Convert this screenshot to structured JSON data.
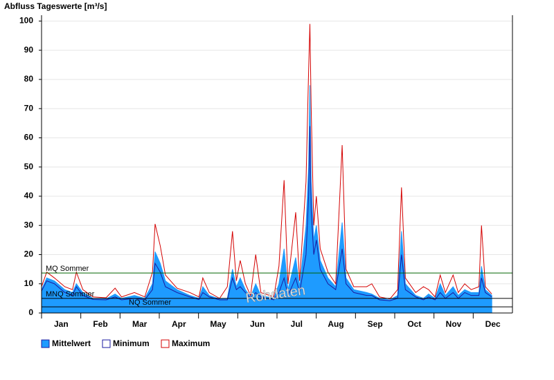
{
  "chart_data": {
    "type": "area-lines",
    "title": "Abfluss Tageswerte [m³/s]",
    "watermark": "Rohdaten",
    "categories": [
      "Jan",
      "Feb",
      "Mar",
      "Apr",
      "May",
      "Jun",
      "Jul",
      "Aug",
      "Sep",
      "Oct",
      "Nov",
      "Dec"
    ],
    "xlim": [
      0,
      365
    ],
    "ylim": [
      0,
      102
    ],
    "yticks": [
      0,
      10,
      20,
      30,
      40,
      50,
      60,
      70,
      80,
      90,
      100
    ],
    "grid": true,
    "x": [
      0,
      4,
      10,
      18,
      24,
      27,
      32,
      40,
      50,
      57,
      62,
      72,
      80,
      86,
      88,
      92,
      96,
      105,
      115,
      122,
      125,
      130,
      138,
      144,
      148,
      151,
      154,
      158,
      162,
      166,
      170,
      180,
      184,
      188,
      191,
      197,
      200,
      205,
      207,
      208,
      209,
      211,
      213,
      216,
      222,
      228,
      233,
      236,
      242,
      252,
      256,
      262,
      270,
      276,
      279,
      282,
      290,
      296,
      300,
      305,
      309,
      313,
      319,
      323,
      328,
      333,
      339,
      341,
      344,
      349
    ],
    "series": [
      {
        "name": "Mittelwert",
        "color": "#1e9bff",
        "values": [
          8,
          12,
          11,
          8,
          7,
          10,
          7,
          5,
          4.8,
          6.5,
          5,
          6,
          5,
          10,
          21,
          17,
          11,
          8,
          6,
          5,
          9,
          6,
          4.8,
          5,
          15,
          9,
          12,
          8,
          5.5,
          10,
          6,
          5,
          10,
          22,
          8,
          19,
          9,
          30,
          50,
          78,
          45,
          25,
          30,
          18,
          12,
          9,
          31,
          12,
          8,
          7,
          6.5,
          5,
          4.5,
          6,
          28,
          10,
          6,
          5,
          6.5,
          5,
          10,
          6,
          9,
          6,
          8,
          7,
          7,
          16,
          8,
          6
        ]
      },
      {
        "name": "Minimum",
        "color": "#1a1aa0",
        "values": [
          7.5,
          11,
          10,
          7,
          6,
          9,
          6,
          4.6,
          4.5,
          5.5,
          4.5,
          5,
          4.5,
          8,
          17,
          14,
          9,
          7,
          5.5,
          4.6,
          7,
          5.5,
          4.5,
          4.5,
          12,
          8,
          9,
          7,
          5,
          7,
          5.5,
          4.5,
          7,
          12,
          6,
          12,
          7,
          20,
          40,
          64,
          35,
          20,
          25,
          15,
          10,
          8,
          22,
          10,
          7,
          6,
          6,
          4.5,
          4.2,
          5,
          20,
          8,
          5.5,
          4.5,
          5.5,
          4.5,
          7,
          5,
          7,
          5,
          7,
          6,
          6,
          12,
          7,
          5.5
        ]
      },
      {
        "name": "Maximum",
        "color": "#d40000",
        "values": [
          9,
          14,
          12,
          9,
          8,
          14,
          8,
          5.5,
          5.2,
          8.5,
          5.5,
          7,
          5.5,
          14,
          30.5,
          23,
          13,
          8.5,
          7,
          5.5,
          12,
          7,
          5,
          9,
          28,
          11,
          18,
          10,
          6,
          20,
          7,
          5.5,
          16,
          45.5,
          10,
          34.5,
          11,
          45,
          83,
          99,
          70,
          30,
          40,
          22,
          14,
          10,
          57.5,
          15,
          9,
          9,
          10,
          5.5,
          4.8,
          8,
          43,
          12,
          7,
          9,
          8,
          5.5,
          13,
          7,
          13,
          7,
          10,
          8,
          9,
          30,
          9,
          6.5
        ]
      }
    ],
    "reference_lines": [
      {
        "label": "MQ Sommer",
        "value": 13.7,
        "color": "#006400"
      },
      {
        "label": "MNQ Sommer",
        "value": 5,
        "color": "#000000"
      },
      {
        "label": "NQ Sommer",
        "value": 2.1,
        "color": "#000000"
      }
    ]
  }
}
